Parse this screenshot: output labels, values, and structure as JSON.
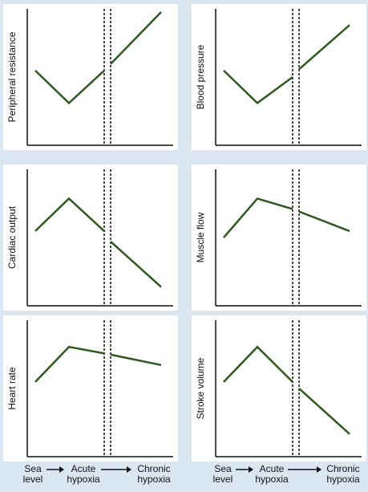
{
  "chart_data": [
    {
      "type": "line",
      "ylabel": "Peripheral resistance",
      "segments": [
        {
          "x": [
            0,
            1,
            2
          ],
          "y": [
            0.55,
            0.3,
            0.55
          ]
        },
        {
          "x": [
            2,
            3
          ],
          "y": [
            0.6,
            1.0
          ]
        }
      ]
    },
    {
      "type": "line",
      "ylabel": "Blood pressure",
      "segments": [
        {
          "x": [
            0,
            1,
            2
          ],
          "y": [
            0.55,
            0.3,
            0.5
          ]
        },
        {
          "x": [
            2,
            3
          ],
          "y": [
            0.56,
            0.9
          ]
        }
      ]
    },
    {
      "type": "line",
      "ylabel": "Cardiac output",
      "segments": [
        {
          "x": [
            0,
            1,
            2
          ],
          "y": [
            0.55,
            0.8,
            0.55
          ]
        },
        {
          "x": [
            2,
            3
          ],
          "y": [
            0.47,
            0.12
          ]
        }
      ]
    },
    {
      "type": "line",
      "ylabel": "Muscle flow",
      "segments": [
        {
          "x": [
            0,
            1,
            2
          ],
          "y": [
            0.5,
            0.8,
            0.72
          ]
        },
        {
          "x": [
            2,
            3
          ],
          "y": [
            0.7,
            0.55
          ]
        }
      ]
    },
    {
      "type": "line",
      "ylabel": "Heart rate",
      "segments": [
        {
          "x": [
            0,
            1,
            2
          ],
          "y": [
            0.55,
            0.82,
            0.77
          ]
        },
        {
          "x": [
            2,
            3
          ],
          "y": [
            0.76,
            0.68
          ]
        }
      ]
    },
    {
      "type": "line",
      "ylabel": "Stroke volume",
      "segments": [
        {
          "x": [
            0,
            1,
            2
          ],
          "y": [
            0.55,
            0.82,
            0.55
          ]
        },
        {
          "x": [
            2,
            3
          ],
          "y": [
            0.5,
            0.15
          ]
        }
      ]
    }
  ],
  "x_labels": {
    "sea_level": [
      "Sea",
      "level"
    ],
    "acute_hypoxia": [
      "Acute",
      "hypoxia"
    ],
    "chronic_hypoxia": [
      "Chronic",
      "hypoxia"
    ]
  },
  "colors": {
    "line": "#2e5a1e",
    "panel": "#ffffff",
    "background": "#dbe6f3",
    "axis": "#111111"
  }
}
